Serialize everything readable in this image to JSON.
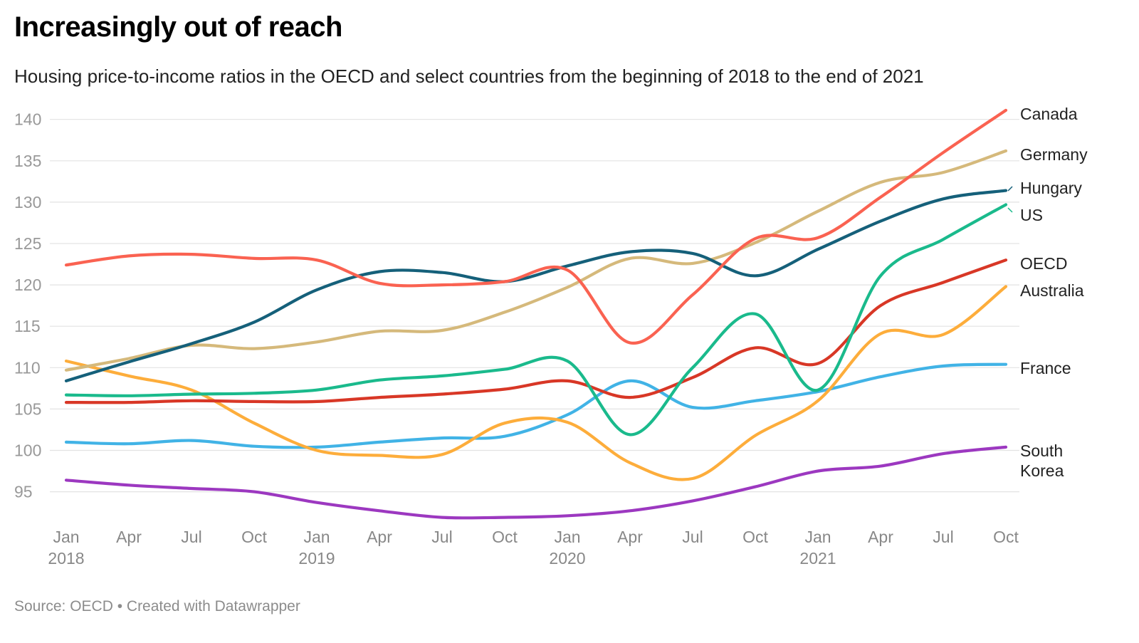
{
  "header": {
    "title": "Increasingly out of reach",
    "subtitle": "Housing price-to-income ratios in the OECD and select countries from the beginning of 2018 to the end of 2021"
  },
  "footer": {
    "source": "Source: OECD • Created with Datawrapper"
  },
  "chart_data": {
    "type": "line",
    "title": "Increasingly out of reach",
    "subtitle": "Housing price-to-income ratios in the OECD and select countries from the beginning of 2018 to the end of 2021",
    "xlabel": "",
    "ylabel": "",
    "ylim": [
      91,
      142
    ],
    "yticks": [
      95,
      100,
      105,
      110,
      115,
      120,
      125,
      130,
      135,
      140
    ],
    "grid": true,
    "legend": "direct labels at line ends (right)",
    "x": [
      "2018-Q1",
      "2018-Q2",
      "2018-Q3",
      "2018-Q4",
      "2019-Q1",
      "2019-Q2",
      "2019-Q3",
      "2019-Q4",
      "2020-Q1",
      "2020-Q2",
      "2020-Q3",
      "2020-Q4",
      "2021-Q1",
      "2021-Q2",
      "2021-Q3",
      "2021-Q4"
    ],
    "x_tick_labels": [
      {
        "month": "Jan",
        "year": "2018"
      },
      {
        "month": "Apr",
        "year": ""
      },
      {
        "month": "Jul",
        "year": ""
      },
      {
        "month": "Oct",
        "year": ""
      },
      {
        "month": "Jan",
        "year": "2019"
      },
      {
        "month": "Apr",
        "year": ""
      },
      {
        "month": "Jul",
        "year": ""
      },
      {
        "month": "Oct",
        "year": ""
      },
      {
        "month": "Jan",
        "year": "2020"
      },
      {
        "month": "Apr",
        "year": ""
      },
      {
        "month": "Jul",
        "year": ""
      },
      {
        "month": "Oct",
        "year": ""
      },
      {
        "month": "Jan",
        "year": "2021"
      },
      {
        "month": "Apr",
        "year": ""
      },
      {
        "month": "Jul",
        "year": ""
      },
      {
        "month": "Oct",
        "year": ""
      }
    ],
    "series": [
      {
        "name": "Canada",
        "label_lines": [
          "Canada"
        ],
        "color": "#fa6251",
        "values": [
          122.4,
          123.5,
          123.7,
          123.2,
          123.0,
          120.2,
          120.0,
          120.4,
          121.8,
          113.0,
          118.8,
          125.6,
          125.7,
          130.6,
          136.0,
          141.1
        ]
      },
      {
        "name": "Germany",
        "label_lines": [
          "Germany"
        ],
        "color": "#d5b97b",
        "values": [
          109.7,
          111.1,
          112.7,
          112.3,
          113.1,
          114.4,
          114.5,
          116.7,
          119.7,
          123.2,
          122.6,
          125.1,
          128.9,
          132.4,
          133.6,
          136.2
        ]
      },
      {
        "name": "Hungary",
        "label_lines": [
          "Hungary"
        ],
        "color": "#15607a",
        "values": [
          108.4,
          110.7,
          112.9,
          115.5,
          119.4,
          121.6,
          121.5,
          120.4,
          122.3,
          124.0,
          123.8,
          121.1,
          124.3,
          127.7,
          130.4,
          131.4
        ]
      },
      {
        "name": "US",
        "label_lines": [
          "US"
        ],
        "color": "#1aba8c",
        "values": [
          106.7,
          106.6,
          106.8,
          106.9,
          107.3,
          108.5,
          109.0,
          109.8,
          110.8,
          101.9,
          110.0,
          116.5,
          107.3,
          121.1,
          125.5,
          129.7
        ]
      },
      {
        "name": "OECD",
        "label_lines": [
          "OECD"
        ],
        "color": "#d83726",
        "values": [
          105.8,
          105.8,
          106.0,
          105.9,
          105.9,
          106.4,
          106.8,
          107.4,
          108.4,
          106.4,
          108.8,
          112.4,
          110.5,
          117.5,
          120.3,
          123.0
        ]
      },
      {
        "name": "Australia",
        "label_lines": [
          "Australia"
        ],
        "color": "#fdad3b",
        "values": [
          110.8,
          109.0,
          107.3,
          103.3,
          100.0,
          99.4,
          99.5,
          103.3,
          103.4,
          98.5,
          96.6,
          101.8,
          106.0,
          114.1,
          114.0,
          119.8
        ]
      },
      {
        "name": "France",
        "label_lines": [
          "France"
        ],
        "color": "#41b3e6",
        "values": [
          101.0,
          100.8,
          101.2,
          100.5,
          100.4,
          101.0,
          101.5,
          101.7,
          104.3,
          108.4,
          105.2,
          106.0,
          107.1,
          108.9,
          110.2,
          110.4
        ]
      },
      {
        "name": "South Korea",
        "label_lines": [
          "South",
          "Korea"
        ],
        "color": "#9c38c0",
        "values": [
          96.4,
          95.8,
          95.4,
          95.0,
          93.7,
          92.7,
          91.9,
          91.9,
          92.1,
          92.7,
          93.9,
          95.6,
          97.5,
          98.1,
          99.6,
          100.4
        ]
      }
    ]
  }
}
